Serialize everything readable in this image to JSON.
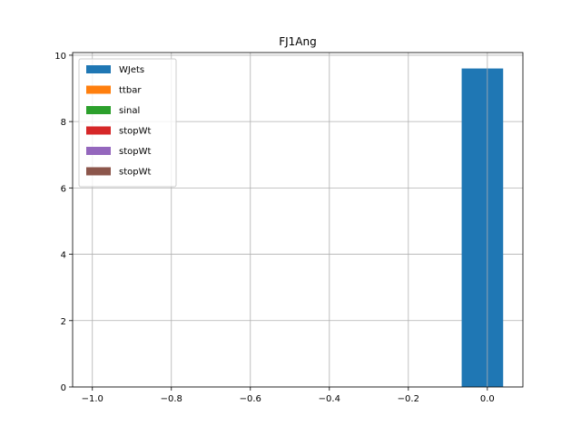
{
  "chart_data": {
    "type": "bar",
    "title": "FJ1Ang",
    "xlabel": "",
    "ylabel": "",
    "xlim": [
      -1.05,
      0.09
    ],
    "ylim": [
      0,
      10.08
    ],
    "x_ticks": [
      -1.0,
      -0.8,
      -0.6,
      -0.4,
      -0.2,
      0.0
    ],
    "x_tick_labels": [
      "−1.0",
      "−0.8",
      "−0.6",
      "−0.4",
      "−0.2",
      "0.0"
    ],
    "y_ticks": [
      0,
      2,
      4,
      6,
      8,
      10
    ],
    "y_tick_labels": [
      "0",
      "2",
      "4",
      "6",
      "8",
      "10"
    ],
    "grid": true,
    "legend_position": "top-left",
    "series": [
      {
        "name": "WJets",
        "color": "#1f77b4",
        "bins": [
          {
            "x0": -0.065,
            "x1": 0.04,
            "value": 9.6
          }
        ]
      },
      {
        "name": "ttbar",
        "color": "#ff7f0e",
        "bins": []
      },
      {
        "name": "sinal",
        "color": "#2ca02c",
        "bins": []
      },
      {
        "name": "stopWt",
        "color": "#d62728",
        "bins": []
      },
      {
        "name": "stopWt",
        "color": "#9467bd",
        "bins": []
      },
      {
        "name": "stopWt",
        "color": "#8c564b",
        "bins": []
      }
    ]
  }
}
